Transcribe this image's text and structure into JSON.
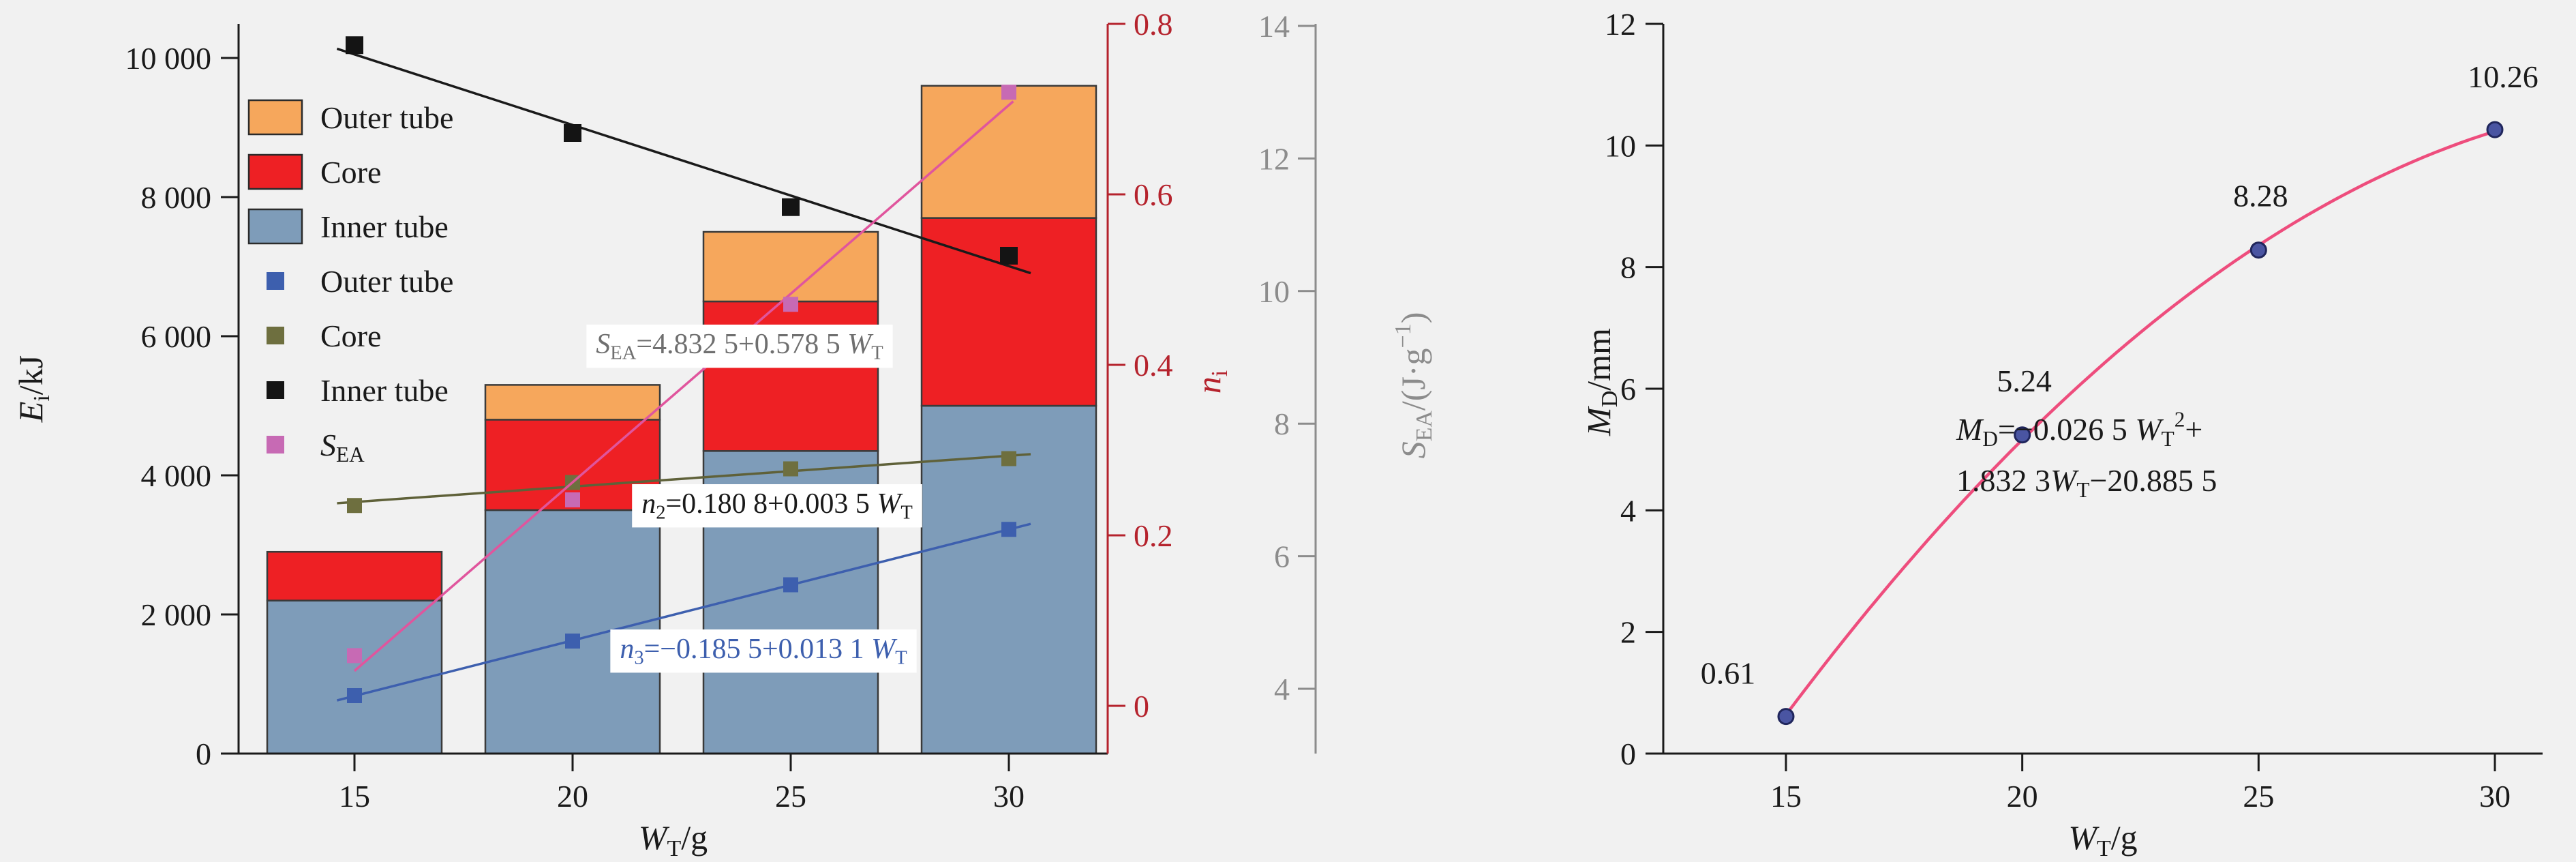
{
  "style": {
    "background": "#f1f1f1",
    "axis_color": "#1a1a1a",
    "n_axis_color": "#b5232d",
    "sea_axis_color": "#8c8c8c",
    "text_color": "#1a1a1a",
    "bar_edge_color": "#3a3a3a",
    "equation_box_fill": "#ffffff"
  },
  "chart_data": [
    {
      "type": "bar",
      "title": "",
      "xlabel": "*W*_{T}/g",
      "ylabel_left": "*E*_{i}/kJ",
      "ylabel_right_n": "*n*_{i}",
      "ylabel_right_sea": "*S*_{EA}/(J·g^{−1})",
      "x_categories": [
        15,
        20,
        25,
        30
      ],
      "x_tick_labels": [
        "15",
        "20",
        "25",
        "30"
      ],
      "e_axis": {
        "ticks": [
          0,
          2000,
          4000,
          6000,
          8000,
          10000
        ],
        "labels": [
          "0",
          "2 000",
          "4 000",
          "6 000",
          "8 000",
          "10 000"
        ],
        "range": [
          0,
          10490
        ]
      },
      "n_axis": {
        "ticks": [
          0,
          0.2,
          0.4,
          0.6,
          0.8
        ],
        "labels": [
          "0",
          "0.2",
          "0.4",
          "0.6",
          "0.8"
        ],
        "range": [
          -0.056,
          0.8
        ]
      },
      "sea_axis": {
        "ticks": [
          4,
          6,
          8,
          10,
          12,
          14
        ],
        "labels": [
          "4",
          "6",
          "8",
          "10",
          "12",
          "14"
        ],
        "range": [
          3.5,
          14.3
        ]
      },
      "bar_series": [
        {
          "name": "Inner tube",
          "color": "#7e9cb9",
          "values": [
            2200,
            3500,
            4350,
            5000
          ]
        },
        {
          "name": "Core",
          "color": "#ee2024",
          "values": [
            700,
            1300,
            2150,
            2700
          ]
        },
        {
          "name": "Outer tube",
          "color": "#f6a75c",
          "values": [
            0,
            500,
            1000,
            1900
          ]
        }
      ],
      "scatter_series": [
        {
          "name": "Outer tube",
          "axis": "n",
          "marker_color": "#3d5fae",
          "line_color": "#3d5fae",
          "values": [
            0.012,
            0.076,
            0.142,
            0.207
          ],
          "marker_size": 22
        },
        {
          "name": "Core",
          "axis": "n",
          "marker_color": "#6e6f3f",
          "line_color": "#5f6139",
          "values": [
            0.235,
            0.262,
            0.278,
            0.29
          ],
          "marker_size": 22
        },
        {
          "name": "Inner tube",
          "axis": "n",
          "marker_color": "#141414",
          "line_color": "#1a1a1a",
          "values": [
            0.775,
            0.672,
            0.585,
            0.528
          ],
          "marker_size": 26
        },
        {
          "name": "*S*_{EA}",
          "axis": "sea",
          "marker_color": "#c76ab4",
          "line_color": "#e0559d",
          "values": [
            4.5,
            6.85,
            9.8,
            13.0
          ],
          "marker_size": 22
        }
      ],
      "equations": [
        {
          "text": "*S*_{EA}=4.832 5+0.578 5 *W*_{T}",
          "color": "#6f6f6f",
          "x": 1085,
          "y": 518
        },
        {
          "text": "*n*_{2}=0.180 8+0.003 5 *W*_{T}",
          "color": "#1a1a1a",
          "x": 1140,
          "y": 752
        },
        {
          "text": "*n*_{3}=−0.185 5+0.013 1 *W*_{T}",
          "color": "#3d5fae",
          "x": 1120,
          "y": 965
        }
      ],
      "legend_fill_items": [
        {
          "label": "Outer tube",
          "color": "#f6a75c"
        },
        {
          "label": "Core",
          "color": "#ee2024"
        },
        {
          "label": "Inner tube",
          "color": "#7e9cb9"
        }
      ],
      "legend_marker_items": [
        {
          "label": "Outer tube",
          "color": "#3d5fae"
        },
        {
          "label": "Core",
          "color": "#6e6f3f"
        },
        {
          "label": "Inner tube",
          "color": "#141414"
        },
        {
          "label": "*S*_{EA}",
          "color": "#c76ab4"
        }
      ],
      "grid": false,
      "legend_position": "top-left-inside"
    },
    {
      "type": "scatter",
      "title": "",
      "xlabel": "*W*_{T}/g",
      "ylabel": "*M*_{D}/mm",
      "x": [
        15,
        20,
        25,
        30
      ],
      "y": [
        0.61,
        5.24,
        8.28,
        10.26
      ],
      "point_labels": [
        "0.61",
        "5.24",
        "8.28",
        "10.26"
      ],
      "x_ticks": [
        15,
        20,
        25,
        30
      ],
      "x_tick_labels": [
        "15",
        "20",
        "25",
        "30"
      ],
      "y_ticks": [
        0,
        2,
        4,
        6,
        8,
        10,
        12
      ],
      "y_tick_labels": [
        "0",
        "2",
        "4",
        "6",
        "8",
        "10",
        "12"
      ],
      "ylim": [
        0,
        12
      ],
      "fit": {
        "type": "quadratic",
        "a": -0.0265,
        "b": 1.8323,
        "c": -20.8855
      },
      "equation_lines": [
        "*M*_{D}=−0.026 5 *W*_{T}^{2}+",
        "1.832 3*W*_{T}−20.885 5"
      ],
      "curve_color": "#ee4d7d",
      "point_color": "#4a55a2",
      "point_edge_color": "#20265c",
      "grid": false
    }
  ]
}
